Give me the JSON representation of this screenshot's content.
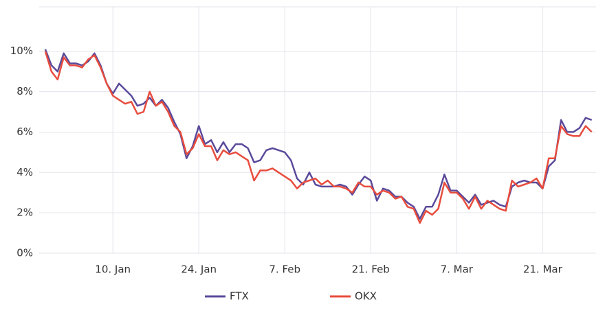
{
  "chart_data": {
    "type": "line",
    "x": [
      -1,
      0,
      1,
      2,
      3,
      4,
      5,
      6,
      7,
      8,
      9,
      10,
      11,
      12,
      13,
      14,
      15,
      16,
      17,
      18,
      19,
      20,
      21,
      22,
      23,
      24,
      25,
      26,
      27,
      28,
      29,
      30,
      31,
      32,
      33,
      34,
      35,
      36,
      37,
      38,
      39,
      40,
      41,
      42,
      43,
      44,
      45,
      46,
      47,
      48,
      49,
      50,
      51,
      52,
      53,
      54,
      55,
      56,
      57,
      58,
      59,
      60,
      61,
      62,
      63,
      64,
      65,
      66,
      67,
      68,
      69,
      70,
      71,
      72,
      73,
      74,
      75,
      76,
      77,
      78,
      79,
      80,
      81,
      82,
      83,
      84,
      85,
      86,
      87,
      88
    ],
    "series": [
      {
        "name": "FTX",
        "color": "#5b4a9b",
        "values": [
          10.1,
          9.3,
          9.0,
          9.9,
          9.4,
          9.4,
          9.3,
          9.5,
          9.9,
          9.3,
          8.4,
          7.9,
          8.4,
          8.1,
          7.8,
          7.3,
          7.4,
          7.7,
          7.3,
          7.6,
          7.2,
          6.5,
          5.9,
          4.7,
          5.3,
          6.3,
          5.4,
          5.6,
          5.0,
          5.5,
          5.0,
          5.4,
          5.4,
          5.2,
          4.5,
          4.6,
          5.1,
          5.2,
          5.1,
          5.0,
          4.6,
          3.7,
          3.4,
          4.0,
          3.4,
          3.3,
          3.3,
          3.3,
          3.4,
          3.3,
          2.9,
          3.4,
          3.8,
          3.6,
          2.6,
          3.2,
          3.1,
          2.8,
          2.8,
          2.5,
          2.3,
          1.7,
          2.3,
          2.3,
          2.9,
          3.9,
          3.1,
          3.1,
          2.8,
          2.5,
          2.9,
          2.4,
          2.5,
          2.6,
          2.4,
          2.3,
          3.3,
          3.5,
          3.6,
          3.5,
          3.5,
          3.2,
          4.3,
          4.6,
          6.6,
          6.0,
          6.0,
          6.2,
          6.7,
          6.6
        ]
      },
      {
        "name": "OKX",
        "color": "#e84c3d",
        "values": [
          10.0,
          9.0,
          8.6,
          9.7,
          9.3,
          9.3,
          9.2,
          9.6,
          9.8,
          9.2,
          8.4,
          7.8,
          7.6,
          7.4,
          7.5,
          6.9,
          7.0,
          8.0,
          7.3,
          7.5,
          7.0,
          6.3,
          6.0,
          4.9,
          5.2,
          5.9,
          5.3,
          5.3,
          4.6,
          5.1,
          4.9,
          5.0,
          4.8,
          4.6,
          3.6,
          4.1,
          4.1,
          4.2,
          4.0,
          3.8,
          3.6,
          3.2,
          3.5,
          3.6,
          3.7,
          3.4,
          3.6,
          3.3,
          3.3,
          3.2,
          3.0,
          3.5,
          3.3,
          3.3,
          2.9,
          3.1,
          3.0,
          2.7,
          2.8,
          2.3,
          2.2,
          1.5,
          2.1,
          1.9,
          2.2,
          3.5,
          3.0,
          3.0,
          2.7,
          2.2,
          2.8,
          2.2,
          2.6,
          2.4,
          2.2,
          2.1,
          3.6,
          3.3,
          3.4,
          3.5,
          3.7,
          3.2,
          4.7,
          4.7,
          6.3,
          5.9,
          5.8,
          5.8,
          6.3,
          6.0
        ]
      }
    ],
    "xlim": [
      -2,
      88.7
    ],
    "xticks": [
      {
        "value": 10,
        "label": "10. Jan"
      },
      {
        "value": 24,
        "label": "24. Jan"
      },
      {
        "value": 38,
        "label": "7. Feb"
      },
      {
        "value": 52,
        "label": "21. Feb"
      },
      {
        "value": 66,
        "label": "7. Mar"
      },
      {
        "value": 80,
        "label": "21. Mar"
      }
    ],
    "ylim": [
      0,
      12.2
    ],
    "yticks": [
      {
        "value": 0,
        "label": "0%"
      },
      {
        "value": 2,
        "label": "2%"
      },
      {
        "value": 4,
        "label": "4%"
      },
      {
        "value": 6,
        "label": "6%"
      },
      {
        "value": 8,
        "label": "8%"
      },
      {
        "value": 10,
        "label": "10%"
      }
    ],
    "grid": true
  }
}
